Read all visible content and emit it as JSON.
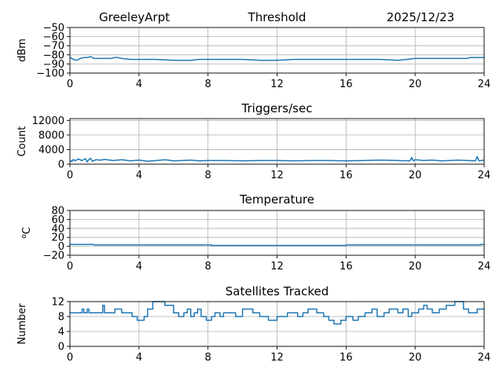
{
  "header": {
    "station": "GreeleyArpt",
    "date": "2025/12/23"
  },
  "colors": {
    "line": "#1f77b4",
    "grid": "#b0b0b0"
  },
  "chart_data": [
    {
      "type": "line",
      "title": "Threshold",
      "xlabel": "",
      "ylabel": "dBm",
      "xlim": [
        0,
        24
      ],
      "ylim": [
        -100,
        -50
      ],
      "xticks": [
        0,
        4,
        8,
        12,
        16,
        20,
        24
      ],
      "yticks": [
        -100,
        -90,
        -80,
        -70,
        -60,
        -50
      ],
      "grid": true,
      "series": [
        {
          "x": [
            0,
            0.2,
            0.4,
            0.6,
            0.8,
            1.0,
            1.2,
            1.4,
            1.6,
            2.0,
            2.4,
            2.6,
            2.8,
            3.0,
            3.5,
            4.0,
            4.5,
            5.0,
            6.0,
            7.0,
            7.5,
            8.0,
            9.0,
            10.0,
            11.0,
            12.0,
            13.0,
            14.0,
            15.0,
            16.0,
            17.0,
            18.0,
            19.0,
            19.5,
            20.0,
            21.0,
            22.0,
            23.0,
            23.2,
            24.0
          ],
          "y": [
            -83,
            -85,
            -86,
            -84,
            -83,
            -83,
            -82,
            -84,
            -84,
            -84,
            -84,
            -83,
            -83,
            -84,
            -85,
            -85,
            -85,
            -85,
            -86,
            -86,
            -85,
            -85,
            -85,
            -85,
            -86,
            -86,
            -85,
            -85,
            -85,
            -85,
            -85,
            -85,
            -86,
            -85,
            -84,
            -84,
            -84,
            -84,
            -83,
            -83
          ]
        }
      ]
    },
    {
      "type": "line",
      "title": "Triggers/sec",
      "xlabel": "",
      "ylabel": "Count",
      "xlim": [
        0,
        24
      ],
      "ylim": [
        0,
        12500
      ],
      "xticks": [
        0,
        4,
        8,
        12,
        16,
        20,
        24
      ],
      "yticks": [
        0,
        4000,
        8000,
        12000
      ],
      "grid": true,
      "series": [
        {
          "x": [
            0,
            0.1,
            0.2,
            0.3,
            0.4,
            0.5,
            0.7,
            0.9,
            1.0,
            1.1,
            1.2,
            1.3,
            1.5,
            1.8,
            2.0,
            2.5,
            3.0,
            3.5,
            4.0,
            4.5,
            5.0,
            5.5,
            6.0,
            6.5,
            7.0,
            7.5,
            8.0,
            9.0,
            10.0,
            11.0,
            12.0,
            13.0,
            14.0,
            15.0,
            16.0,
            17.0,
            18.0,
            19.0,
            19.7,
            19.8,
            19.9,
            20.0,
            20.5,
            21.0,
            21.5,
            22.0,
            22.5,
            23.0,
            23.5,
            23.6,
            23.7,
            24.0
          ],
          "y": [
            1100,
            700,
            1300,
            900,
            1200,
            1400,
            1000,
            1500,
            600,
            1300,
            1600,
            800,
            1200,
            1100,
            1300,
            1000,
            1200,
            900,
            1100,
            800,
            1000,
            1200,
            900,
            1000,
            1100,
            900,
            1000,
            1000,
            900,
            1000,
            1000,
            900,
            1000,
            1000,
            900,
            1000,
            1100,
            1000,
            900,
            1800,
            900,
            1200,
            1000,
            1100,
            900,
            1000,
            1100,
            1000,
            900,
            2100,
            900,
            1100
          ]
        }
      ]
    },
    {
      "type": "line",
      "title": "Temperature",
      "xlabel": "",
      "ylabel": "oC",
      "xlim": [
        0,
        24
      ],
      "ylim": [
        -20,
        80
      ],
      "xticks": [
        0,
        4,
        8,
        12,
        16,
        20,
        24
      ],
      "yticks": [
        -20,
        0,
        20,
        40,
        60,
        80
      ],
      "grid": true,
      "series": [
        {
          "x": [
            0,
            1.4,
            1.4,
            8.2,
            8.2,
            16.0,
            16.0,
            23.8,
            23.8,
            24.0
          ],
          "y": [
            4,
            4,
            3,
            3,
            2,
            2,
            3,
            3,
            4,
            4
          ]
        }
      ]
    },
    {
      "type": "line",
      "title": "Satellites Tracked",
      "xlabel": "",
      "ylabel": "Number",
      "xlim": [
        0,
        24
      ],
      "ylim": [
        0,
        12
      ],
      "xticks": [
        0,
        4,
        8,
        12,
        16,
        20,
        24
      ],
      "yticks": [
        0,
        4,
        8,
        12
      ],
      "grid": true,
      "series": [
        {
          "x": [
            0,
            0.7,
            0.7,
            0.8,
            0.8,
            1.0,
            1.0,
            1.1,
            1.1,
            1.9,
            1.9,
            2.0,
            2.0,
            2.6,
            2.6,
            3.0,
            3.0,
            3.6,
            3.6,
            3.9,
            3.9,
            4.3,
            4.3,
            4.5,
            4.5,
            4.8,
            4.8,
            5.5,
            5.5,
            6.0,
            6.0,
            6.3,
            6.3,
            6.6,
            6.6,
            6.8,
            6.8,
            7.0,
            7.0,
            7.2,
            7.2,
            7.4,
            7.4,
            7.6,
            7.6,
            7.9,
            7.9,
            8.2,
            8.2,
            8.4,
            8.4,
            8.7,
            8.7,
            8.9,
            8.9,
            9.6,
            9.6,
            10.0,
            10.0,
            10.6,
            10.6,
            11.0,
            11.0,
            11.5,
            11.5,
            12.0,
            12.0,
            12.6,
            12.6,
            13.2,
            13.2,
            13.5,
            13.5,
            13.8,
            13.8,
            14.3,
            14.3,
            14.7,
            14.7,
            15.0,
            15.0,
            15.3,
            15.3,
            15.7,
            15.7,
            16.0,
            16.0,
            16.4,
            16.4,
            16.7,
            16.7,
            17.1,
            17.1,
            17.5,
            17.5,
            17.8,
            17.8,
            18.2,
            18.2,
            18.5,
            18.5,
            19.0,
            19.0,
            19.3,
            19.3,
            19.6,
            19.6,
            19.8,
            19.8,
            20.2,
            20.2,
            20.5,
            20.5,
            20.7,
            20.7,
            21.0,
            21.0,
            21.4,
            21.4,
            21.8,
            21.8,
            22.3,
            22.3,
            22.8,
            22.8,
            23.1,
            23.1,
            23.6,
            23.6,
            24.0
          ],
          "y": [
            9,
            9,
            10,
            10,
            9,
            9,
            10,
            10,
            9,
            9,
            11,
            11,
            9,
            9,
            10,
            10,
            9,
            9,
            8,
            8,
            7,
            7,
            8,
            8,
            10,
            10,
            12,
            12,
            11,
            11,
            9,
            9,
            8,
            8,
            9,
            9,
            10,
            10,
            8,
            8,
            9,
            9,
            10,
            10,
            8,
            8,
            7,
            7,
            8,
            8,
            9,
            9,
            8,
            8,
            9,
            9,
            8,
            8,
            10,
            10,
            9,
            9,
            8,
            8,
            7,
            7,
            8,
            8,
            9,
            9,
            8,
            8,
            9,
            9,
            10,
            10,
            9,
            9,
            8,
            8,
            7,
            7,
            6,
            6,
            7,
            7,
            8,
            8,
            7,
            7,
            8,
            8,
            9,
            9,
            10,
            10,
            8,
            8,
            9,
            9,
            10,
            10,
            9,
            9,
            10,
            10,
            8,
            8,
            9,
            9,
            10,
            10,
            11,
            11,
            10,
            10,
            9,
            9,
            10,
            10,
            11,
            11,
            12,
            12,
            10,
            10,
            9,
            9,
            10,
            10
          ]
        }
      ]
    }
  ]
}
